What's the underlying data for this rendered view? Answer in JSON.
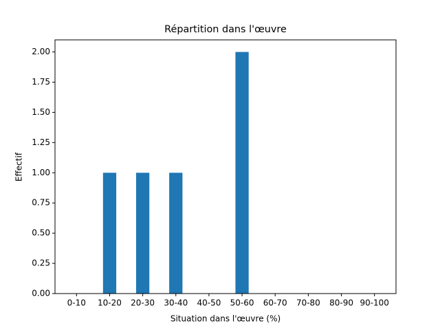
{
  "chart_data": {
    "type": "bar",
    "title": "Répartition dans l'œuvre",
    "x_label": "Situation dans l'œuvre (%)",
    "y_label": "Effectif",
    "categories": [
      "0-10",
      "10-20",
      "20-30",
      "30-40",
      "40-50",
      "50-60",
      "60-70",
      "70-80",
      "80-90",
      "90-100"
    ],
    "values": [
      0,
      1,
      1,
      1,
      0,
      2,
      0,
      0,
      0,
      0
    ],
    "color": "#1f77b4",
    "ylim": [
      0,
      2.1
    ],
    "yticks": [
      {
        "value": 0,
        "label": "0.00"
      },
      {
        "value": 0.25,
        "label": "0.25"
      },
      {
        "value": 0.5,
        "label": "0.50"
      },
      {
        "value": 0.75,
        "label": "0.75"
      },
      {
        "value": 1,
        "label": "1.00"
      },
      {
        "value": 1.25,
        "label": "1.25"
      },
      {
        "value": 1.5,
        "label": "1.50"
      },
      {
        "value": 1.75,
        "label": "1.75"
      },
      {
        "value": 2,
        "label": "2.00"
      }
    ],
    "grid": false
  }
}
